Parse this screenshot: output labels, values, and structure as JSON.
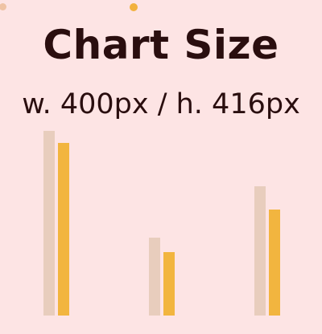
{
  "header": {
    "title": "Chart Size",
    "subtitle": "w. 400px / h. 416px"
  },
  "colors": {
    "background": "#fde4e4",
    "text": "#2a0e0f",
    "series_a": "#e8cdbd",
    "series_b": "#f2b53f",
    "dot_left": "#efc3a4",
    "dot_mid": "#f2b13d"
  },
  "chart_data": {
    "type": "bar",
    "categories": [
      "",
      "",
      ""
    ],
    "series": [
      {
        "values": [
          230,
          97,
          161
        ]
      },
      {
        "values": [
          215,
          79,
          132
        ]
      }
    ],
    "ylim": [
      0,
      230
    ],
    "grid": false,
    "legend": "none"
  }
}
